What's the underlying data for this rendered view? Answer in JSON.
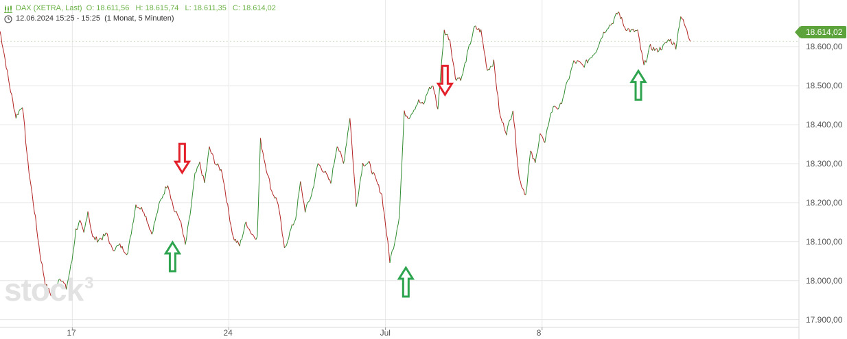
{
  "header": {
    "title": "DAX (XETRA, Last)",
    "open": "O: 18.611,56",
    "high": "H: 18.615,74",
    "low": "L: 18.611,35",
    "close": "C: 18.614,02",
    "timestamp": "12.06.2024 15:25 - 15:25",
    "period": "(1 Monat, 5 Minuten)",
    "chart_icon": "candlestick-icon",
    "time_icon": "clock-icon"
  },
  "watermark": {
    "text": "stock",
    "sup": "3"
  },
  "last_price_label": "18.614,02",
  "colors": {
    "up": "#2e8b2e",
    "down": "#b22222",
    "grid": "#e6e6e6",
    "arrow_up": "#2ea44f",
    "arrow_down": "#e3212b",
    "badge": "#5da33b"
  },
  "chart_data": {
    "type": "line",
    "title": "DAX (XETRA, Last)",
    "xlabel": "",
    "ylabel": "",
    "ylim": [
      17880,
      18720
    ],
    "grid": true,
    "y_ticks": [
      {
        "value": 17900,
        "label": "17.900,00"
      },
      {
        "value": 18000,
        "label": "18.000,00"
      },
      {
        "value": 18100,
        "label": "18.100,00"
      },
      {
        "value": 18200,
        "label": "18.200,00"
      },
      {
        "value": 18300,
        "label": "18.300,00"
      },
      {
        "value": 18400,
        "label": "18.400,00"
      },
      {
        "value": 18500,
        "label": "18.500,00"
      },
      {
        "value": 18600,
        "label": "18.600,00"
      }
    ],
    "x_ticks": [
      {
        "position": 0.0905,
        "label": "17"
      },
      {
        "position": 0.2865,
        "label": "24"
      },
      {
        "position": 0.4825,
        "label": "Jul"
      },
      {
        "position": 0.6785,
        "label": "8"
      }
    ],
    "series": [
      {
        "x": [
          0.0,
          0.005,
          0.012,
          0.02,
          0.028,
          0.035,
          0.043,
          0.05,
          0.057,
          0.065,
          0.075,
          0.083,
          0.09,
          0.095,
          0.1,
          0.105,
          0.11,
          0.116,
          0.122,
          0.128,
          0.134,
          0.14,
          0.15,
          0.16,
          0.17,
          0.18,
          0.19,
          0.2,
          0.21,
          0.218,
          0.225,
          0.232,
          0.238,
          0.244,
          0.25,
          0.256,
          0.262,
          0.27,
          0.278,
          0.285,
          0.292,
          0.3,
          0.308,
          0.315,
          0.322,
          0.326,
          0.332,
          0.34,
          0.348,
          0.356,
          0.364,
          0.37,
          0.376,
          0.382,
          0.39,
          0.398,
          0.406,
          0.414,
          0.422,
          0.43,
          0.438,
          0.446,
          0.454,
          0.462,
          0.47,
          0.478,
          0.484,
          0.488,
          0.494,
          0.5,
          0.506,
          0.512,
          0.518,
          0.524,
          0.53,
          0.536,
          0.542,
          0.548,
          0.556,
          0.563,
          0.57,
          0.578,
          0.586,
          0.594,
          0.602,
          0.61,
          0.618,
          0.626,
          0.634,
          0.642,
          0.65,
          0.658,
          0.664,
          0.67,
          0.676,
          0.682,
          0.688,
          0.694,
          0.7,
          0.706,
          0.712,
          0.718,
          0.724,
          0.73,
          0.738,
          0.746,
          0.754,
          0.76,
          0.766,
          0.774,
          0.782,
          0.79,
          0.798,
          0.806,
          0.814,
          0.822,
          0.83,
          0.838,
          0.846,
          0.852,
          0.858,
          0.864
        ],
        "values": [
          18640,
          18585,
          18500,
          18420,
          18450,
          18300,
          18180,
          18070,
          17990,
          17960,
          18010,
          17980,
          18050,
          18130,
          18150,
          18120,
          18180,
          18110,
          18105,
          18110,
          18120,
          18080,
          18090,
          18070,
          18195,
          18180,
          18120,
          18200,
          18250,
          18180,
          18160,
          18090,
          18170,
          18270,
          18300,
          18250,
          18340,
          18300,
          18280,
          18190,
          18110,
          18090,
          18150,
          18120,
          18110,
          18360,
          18300,
          18230,
          18200,
          18080,
          18130,
          18160,
          18250,
          18180,
          18220,
          18300,
          18280,
          18250,
          18350,
          18300,
          18420,
          18190,
          18300,
          18300,
          18260,
          18220,
          18120,
          18050,
          18100,
          18170,
          18430,
          18420,
          18440,
          18460,
          18450,
          18490,
          18500,
          18440,
          18640,
          18620,
          18520,
          18520,
          18590,
          18650,
          18640,
          18540,
          18560,
          18420,
          18380,
          18440,
          18260,
          18220,
          18330,
          18300,
          18380,
          18350,
          18420,
          18450,
          18440,
          18480,
          18520,
          18560,
          18560,
          18550,
          18570,
          18590,
          18630,
          18650,
          18660,
          18690,
          18650,
          18640,
          18640,
          18550,
          18600,
          18590,
          18600,
          18620,
          18600,
          18680,
          18650,
          18614
        ]
      }
    ],
    "markers": [
      {
        "type": "down",
        "date_pos": 0.228,
        "value": 18270
      },
      {
        "type": "up",
        "date_pos": 0.216,
        "value": 18105
      },
      {
        "type": "down",
        "date_pos": 0.557,
        "value": 18470
      },
      {
        "type": "up",
        "date_pos": 0.508,
        "value": 18040
      },
      {
        "type": "up",
        "date_pos": 0.799,
        "value": 18545
      }
    ]
  }
}
